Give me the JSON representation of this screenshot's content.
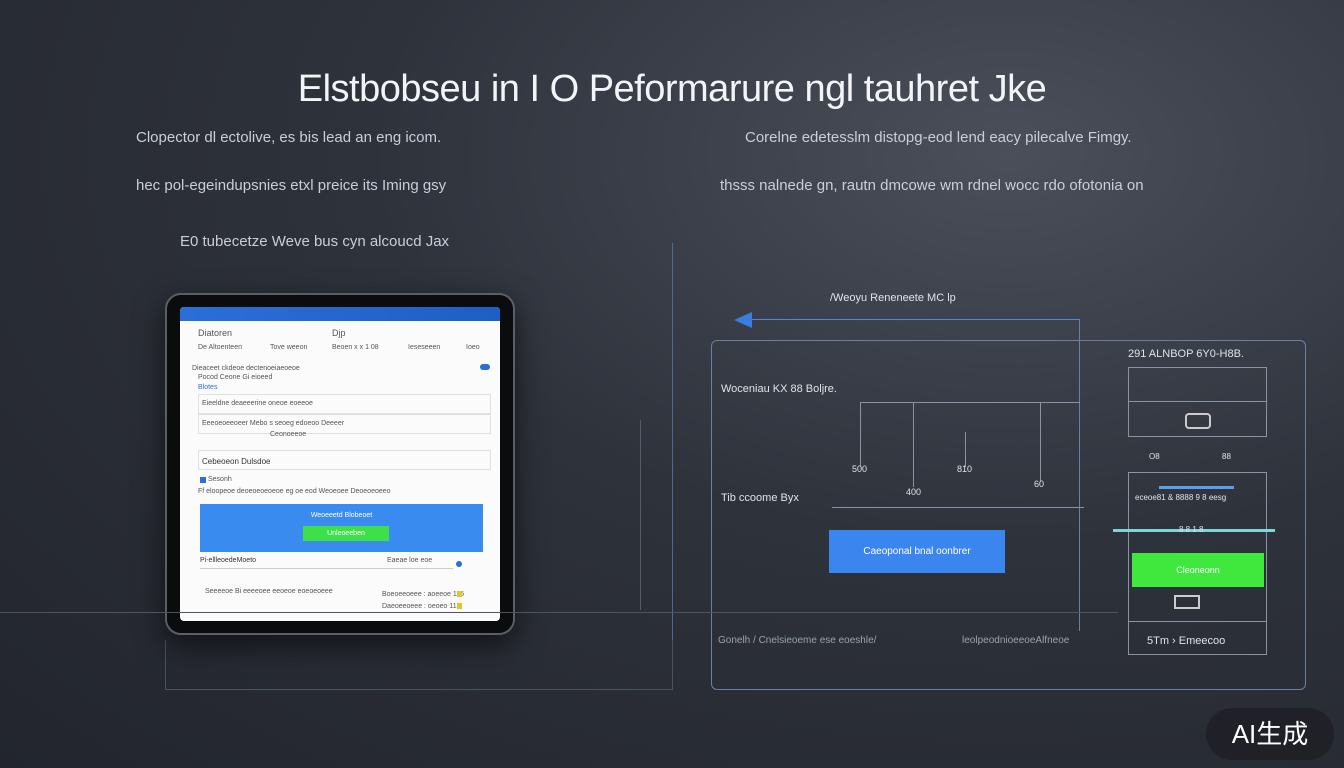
{
  "title": "Elstbobseu in I O Peformarure ngl tauhret Jke",
  "left": {
    "line1": "Clopector dl ectolive, es bis lead an eng icom.",
    "line2": "hec pol-egeindupsnies etxl preice its Iming gsy",
    "line3": "E0 tubecetze Weve bus cyn alcoucd Jax"
  },
  "right": {
    "line1": "Corelne edetesslm distopg-eod lend eacy pilecalve Fimgy.",
    "line2": "thsss nalnede gn, rautn dmcowe wm rdnel wocc rdo ofotonia on"
  },
  "tablet": {
    "app_title": "Diatoren",
    "header_center": "Djp",
    "tabs": [
      "De Altoenteen",
      "Tove weeon",
      "Beoen x x 1 08",
      "Ieseseeen",
      "Ioeo"
    ],
    "row1": "Dieaceet ckdeoe dectenoeiaeoeoe",
    "row2": "Pocod Ceone Gi eioeed",
    "row3": "Blotes",
    "row4": "Eieeldne deaeeerine oneoe eoeeoe",
    "row5": "Eeeoeoeeoeer Mebo s seoeg edoeoo Deeeer",
    "row6": "Ceonoeeoe",
    "section": "Cebeoeon Dulsdoe",
    "check": "Sesonh",
    "desc": "Ff eloopeoe deoeoeoeoeoe eg oe eod Weoeoee Deoeoeoeeo",
    "banner": "Weoeeetd Blobeoet",
    "green_button": "Unleoeeben",
    "list_title": "Pi-ellleoedeMoeto",
    "list_right": "Eaeae loe eoe",
    "footer": "Seeeeoe Bi eeeeoee eeoeoe eoeoeoeee",
    "stat1": "Boeoeeoeee : aoeeoe 115",
    "stat2": "Daeoeeoeee : oeoeo 115"
  },
  "diagram": {
    "arrow_label": "/Weoyu Reneneete MC lp",
    "label_top": "Woceniau KX 88 Boljre.",
    "label_mid": "Tib ccoome Byx",
    "ticks": [
      "500",
      "400",
      "810",
      "60"
    ],
    "button": "Caeoponal bnal oonbrer",
    "footer_left": "Gonelh / Cnelsieoeme ese eoeshle/",
    "footer_right": "leolpeodnioeeoeAlfneoe"
  },
  "side": {
    "title": "291 ALNBOP 6Y0-H8B.",
    "small1": "O8",
    "small2": "88",
    "row": "eceoe81 & 8888 9  8 eesg",
    "scale": "8 8 1 8",
    "green_button": "Cleoneonn",
    "bottom": "5Tm › Emeecoo"
  },
  "badge": "AI生成"
}
